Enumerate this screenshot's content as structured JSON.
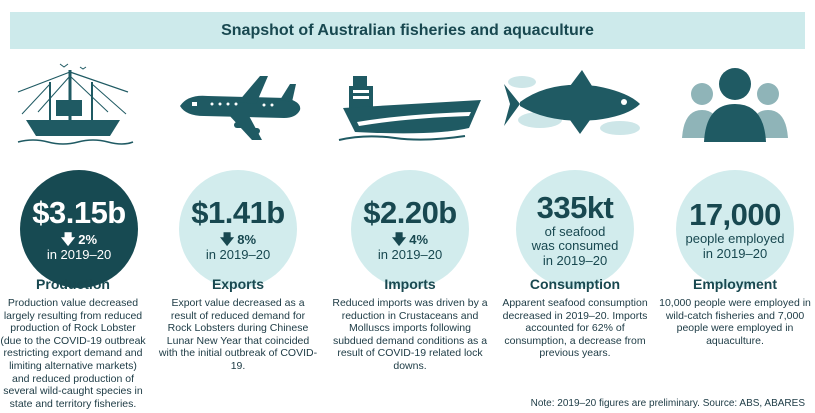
{
  "title": "Snapshot of Australian fisheries and aquaculture",
  "colors": {
    "dark_teal": "#174a52",
    "light_teal": "#d2eced",
    "banner": "#cdeaeb"
  },
  "cards": [
    {
      "icon": "fishing-trawler-icon",
      "value": "$3.15b",
      "change": "2%",
      "change_direction": "down",
      "period": "in 2019–20",
      "label": "Production",
      "description": "Production value decreased largely resulting from reduced production of Rock Lobster (due to the COVID-19 outbreak restricting export demand and limiting alternative markets) and reduced production of several wild-caught species in state and territory fisheries."
    },
    {
      "icon": "airplane-icon",
      "value": "$1.41b",
      "change": "8%",
      "change_direction": "down",
      "period": "in 2019–20",
      "label": "Exports",
      "description": "Export value decreased as a result of reduced demand for Rock Lobsters during Chinese Lunar New Year that coincided with the initial outbreak of COVID-19."
    },
    {
      "icon": "cargo-ship-icon",
      "value": "$2.20b",
      "change": "4%",
      "change_direction": "down",
      "period": "in 2019–20",
      "label": "Imports",
      "description": "Reduced imports was driven by a reduction in Crustaceans and Molluscs imports following subdued demand conditions as a result of COVID-19 related lock downs."
    },
    {
      "icon": "tuna-fish-icon",
      "value": "335kt",
      "sub1": "of seafood",
      "sub2": "was consumed",
      "period": "in 2019–20",
      "label": "Consumption",
      "description": "Apparent seafood consumption decreased in 2019–20. Imports accounted for 62% of consumption, a decrease from previous years."
    },
    {
      "icon": "people-group-icon",
      "value": "17,000",
      "sub1": "people employed",
      "period": "in 2019–20",
      "label": "Employment",
      "description": "10,000 people were employed in wild-catch fisheries and 7,000 people were employed in aquaculture."
    }
  ],
  "note": "Note: 2019–20 figures are preliminary. Source: ABS, ABARES"
}
